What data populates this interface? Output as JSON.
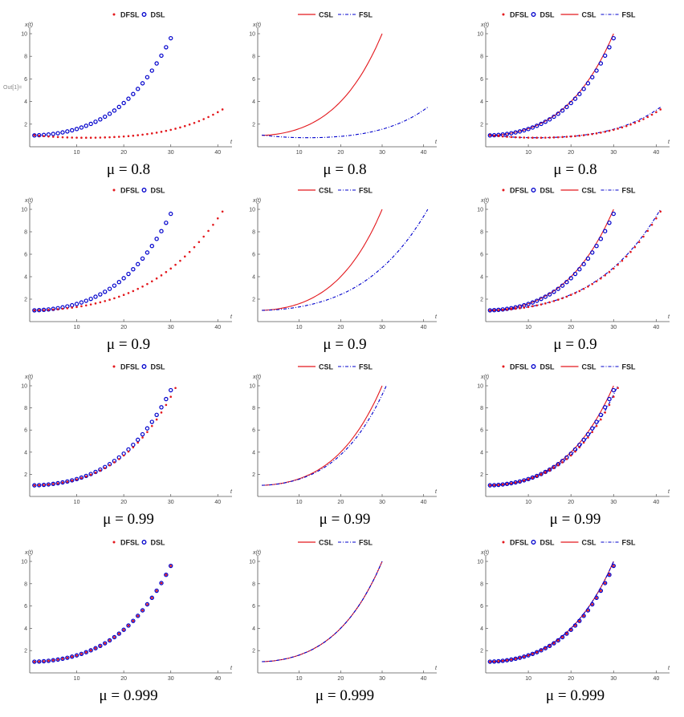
{
  "figure": {
    "y_axis_label": "x(t)",
    "x_axis_label": "t",
    "stray_text": "Out[1]="
  },
  "legend_labels": {
    "dfsl": "DFSL",
    "dsl": "DSL",
    "csl": "CSL",
    "fsl": "FSL"
  },
  "colors": {
    "red": "#e3171c",
    "blue": "#0000cc",
    "axis": "#555555"
  },
  "x_ticks": [
    "10",
    "20",
    "30",
    "40"
  ],
  "y_ticks": [
    "2",
    "4",
    "6",
    "8",
    "10"
  ],
  "rows": [
    {
      "mu_label": "μ = 0.8"
    },
    {
      "mu_label": "μ = 0.9"
    },
    {
      "mu_label": "μ = 0.99"
    },
    {
      "mu_label": "μ = 0.999"
    }
  ],
  "chart_data": [
    {
      "type": "scatter",
      "panel": "mu=0.8 discrete",
      "mu": 0.8,
      "series": [
        "DFSL",
        "DSL"
      ],
      "xlim": [
        0,
        42
      ],
      "ylim": [
        0,
        10
      ],
      "curve_end_t": {
        "DFSL": 41,
        "DSL": 30
      },
      "curve_end_value": {
        "DFSL": 3.3,
        "DSL": 9.6
      },
      "curve_min": {
        "DFSL": 0.8
      }
    },
    {
      "type": "line",
      "panel": "mu=0.8 continuous",
      "mu": 0.8,
      "series": [
        "CSL",
        "FSL"
      ],
      "xlim": [
        0,
        42
      ],
      "ylim": [
        0,
        10
      ],
      "curve_end_t": {
        "CSL": 30,
        "FSL": 41
      },
      "curve_end_value": {
        "CSL": 10,
        "FSL": 3.5
      },
      "curve_min": {
        "FSL": 0.8
      }
    },
    {
      "type": "line",
      "panel": "mu=0.8 combined",
      "mu": 0.8,
      "series": [
        "DFSL",
        "DSL",
        "CSL",
        "FSL"
      ],
      "xlim": [
        0,
        42
      ],
      "ylim": [
        0,
        10
      ],
      "curve_end_t": {
        "DFSL": 41,
        "DSL": 30,
        "CSL": 30,
        "FSL": 41
      },
      "curve_end_value": {
        "DFSL": 3.3,
        "DSL": 9.6,
        "CSL": 10,
        "FSL": 3.5
      },
      "curve_min": {
        "DFSL": 0.8,
        "FSL": 0.8
      }
    },
    {
      "type": "scatter",
      "panel": "mu=0.9 discrete",
      "mu": 0.9,
      "series": [
        "DFSL",
        "DSL"
      ],
      "xlim": [
        0,
        42
      ],
      "ylim": [
        0,
        10
      ],
      "curve_end_t": {
        "DFSL": 41,
        "DSL": 30
      },
      "curve_end_value": {
        "DFSL": 9.8,
        "DSL": 9.6
      }
    },
    {
      "type": "line",
      "panel": "mu=0.9 continuous",
      "mu": 0.9,
      "series": [
        "CSL",
        "FSL"
      ],
      "xlim": [
        0,
        42
      ],
      "ylim": [
        0,
        10
      ],
      "curve_end_t": {
        "CSL": 30,
        "FSL": 41
      },
      "curve_end_value": {
        "CSL": 10,
        "FSL": 10
      }
    },
    {
      "type": "line",
      "panel": "mu=0.9 combined",
      "mu": 0.9,
      "series": [
        "DFSL",
        "DSL",
        "CSL",
        "FSL"
      ],
      "xlim": [
        0,
        42
      ],
      "ylim": [
        0,
        10
      ],
      "curve_end_t": {
        "DFSL": 41,
        "DSL": 30,
        "CSL": 30,
        "FSL": 41
      },
      "curve_end_value": {
        "DFSL": 9.8,
        "DSL": 9.6,
        "CSL": 10,
        "FSL": 10
      }
    },
    {
      "type": "scatter",
      "panel": "mu=0.99 discrete",
      "mu": 0.99,
      "series": [
        "DFSL",
        "DSL"
      ],
      "xlim": [
        0,
        42
      ],
      "ylim": [
        0,
        10
      ],
      "curve_end_t": {
        "DFSL": 31,
        "DSL": 30
      },
      "curve_end_value": {
        "DFSL": 9.8,
        "DSL": 9.6
      }
    },
    {
      "type": "line",
      "panel": "mu=0.99 continuous",
      "mu": 0.99,
      "series": [
        "CSL",
        "FSL"
      ],
      "xlim": [
        0,
        42
      ],
      "ylim": [
        0,
        10
      ],
      "curve_end_t": {
        "CSL": 30,
        "FSL": 31
      },
      "curve_end_value": {
        "CSL": 10,
        "FSL": 10
      }
    },
    {
      "type": "line",
      "panel": "mu=0.99 combined",
      "mu": 0.99,
      "series": [
        "DFSL",
        "DSL",
        "CSL",
        "FSL"
      ],
      "xlim": [
        0,
        42
      ],
      "ylim": [
        0,
        10
      ],
      "curve_end_t": {
        "DFSL": 31,
        "DSL": 30,
        "CSL": 30,
        "FSL": 31
      },
      "curve_end_value": {
        "DFSL": 9.8,
        "DSL": 9.6,
        "CSL": 10,
        "FSL": 10
      }
    },
    {
      "type": "scatter",
      "panel": "mu=0.999 discrete",
      "mu": 0.999,
      "series": [
        "DFSL",
        "DSL"
      ],
      "xlim": [
        0,
        42
      ],
      "ylim": [
        0,
        10
      ],
      "curve_end_t": {
        "DFSL": 30,
        "DSL": 30
      },
      "curve_end_value": {
        "DFSL": 9.6,
        "DSL": 9.6
      }
    },
    {
      "type": "line",
      "panel": "mu=0.999 continuous",
      "mu": 0.999,
      "series": [
        "CSL",
        "FSL"
      ],
      "xlim": [
        0,
        42
      ],
      "ylim": [
        0,
        10
      ],
      "curve_end_t": {
        "CSL": 30,
        "FSL": 30
      },
      "curve_end_value": {
        "CSL": 10,
        "FSL": 10
      }
    },
    {
      "type": "line",
      "panel": "mu=0.999 combined",
      "mu": 0.999,
      "series": [
        "DFSL",
        "DSL",
        "CSL",
        "FSL"
      ],
      "xlim": [
        0,
        42
      ],
      "ylim": [
        0,
        10
      ],
      "curve_end_t": {
        "DFSL": 30,
        "DSL": 30,
        "CSL": 30,
        "FSL": 30
      },
      "curve_end_value": {
        "DFSL": 9.6,
        "DSL": 9.6,
        "CSL": 10,
        "FSL": 10
      }
    }
  ]
}
